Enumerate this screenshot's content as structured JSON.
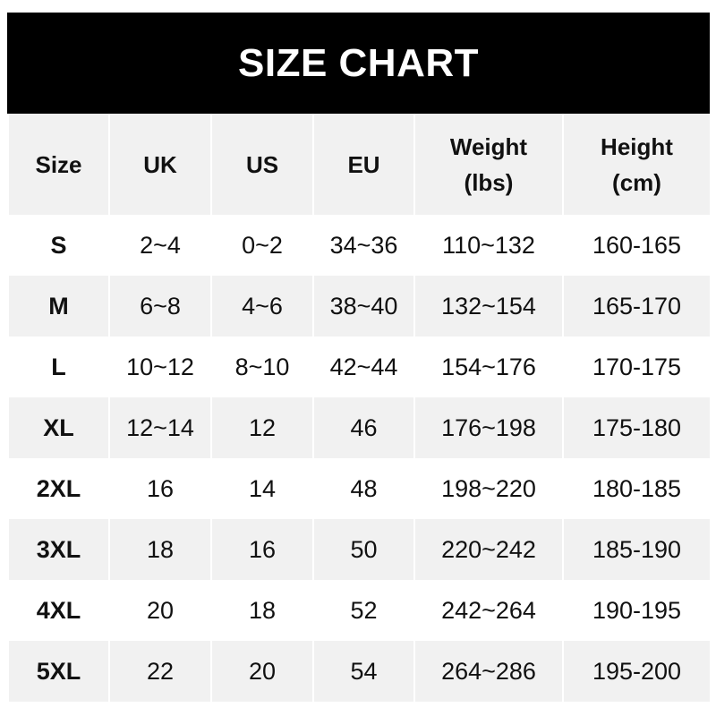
{
  "title": "SIZE CHART",
  "headers": [
    "Size",
    "UK",
    "US",
    "EU",
    "Weight\n(lbs)",
    "Height\n(cm)"
  ],
  "header_lines": [
    [
      "Size"
    ],
    [
      "UK"
    ],
    [
      "US"
    ],
    [
      "EU"
    ],
    [
      "Weight",
      "(lbs)"
    ],
    [
      "Height",
      "(cm)"
    ]
  ],
  "rows": [
    [
      "S",
      "2~4",
      "0~2",
      "34~36",
      "110~132",
      "160-165"
    ],
    [
      "M",
      "6~8",
      "4~6",
      "38~40",
      "132~154",
      "165-170"
    ],
    [
      "L",
      "10~12",
      "8~10",
      "42~44",
      "154~176",
      "170-175"
    ],
    [
      "XL",
      "12~14",
      "12",
      "46",
      "176~198",
      "175-180"
    ],
    [
      "2XL",
      "16",
      "14",
      "48",
      "198~220",
      "180-185"
    ],
    [
      "3XL",
      "18",
      "16",
      "50",
      "220~242",
      "185-190"
    ],
    [
      "4XL",
      "20",
      "18",
      "52",
      "242~264",
      "190-195"
    ],
    [
      "5XL",
      "22",
      "20",
      "54",
      "264~286",
      "195-200"
    ]
  ],
  "colors": {
    "banner": "#000000",
    "stripe": "#f1f1f1",
    "text": "#111111"
  }
}
